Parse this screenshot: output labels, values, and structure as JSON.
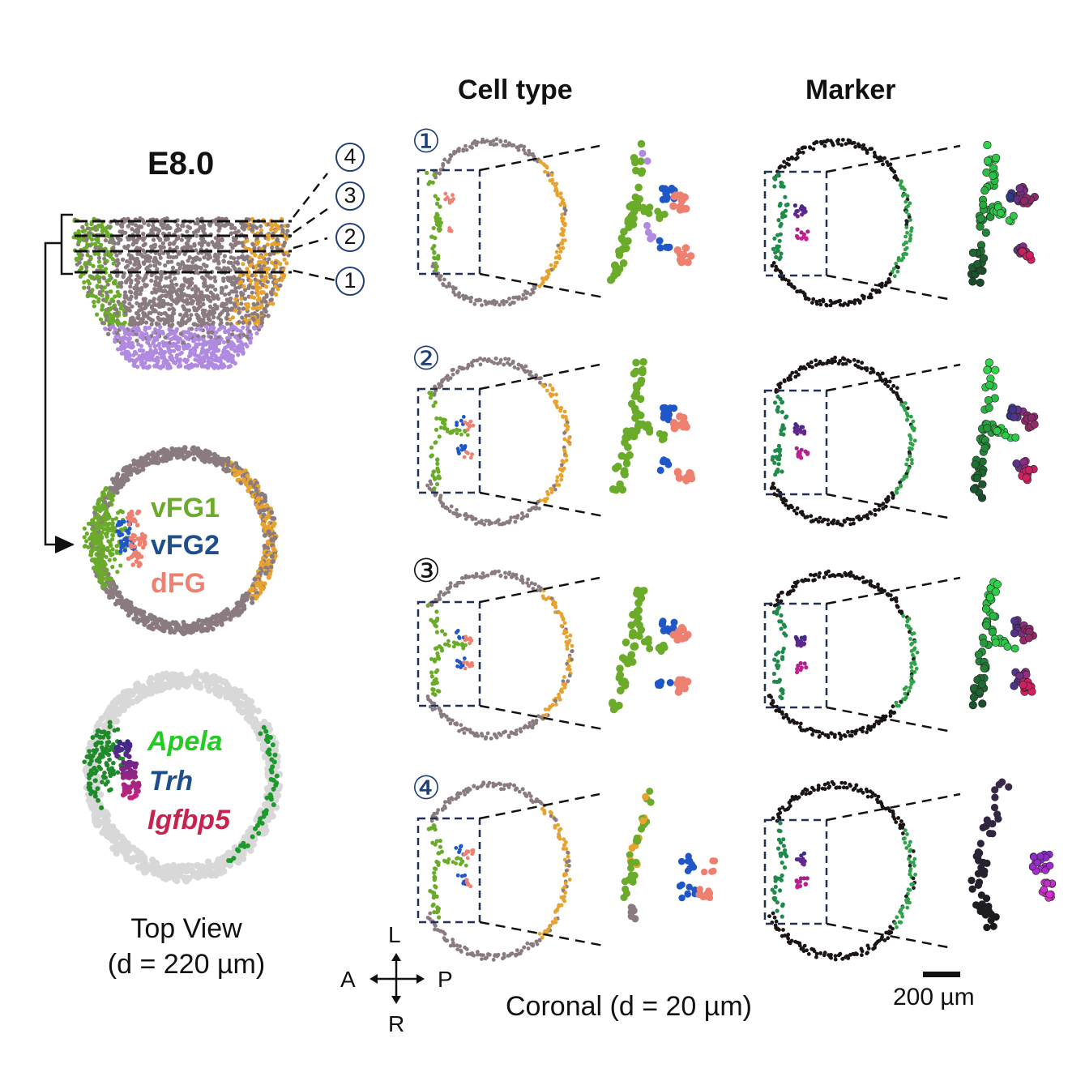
{
  "columns": {
    "cell_type": "Cell type",
    "marker": "Marker"
  },
  "stage": "E8.0",
  "section_numbers": [
    "①",
    "②",
    "③",
    "④"
  ],
  "slice_markers": [
    "4",
    "3",
    "2",
    "1"
  ],
  "cell_type_legend": [
    {
      "label": "vFG1",
      "color": "#6aab2a"
    },
    {
      "label": "vFG2",
      "color": "#1d4f8c"
    },
    {
      "label": "dFG",
      "color": "#ee8070"
    }
  ],
  "marker_legend": [
    {
      "label": "Apela",
      "color": "#22cc22"
    },
    {
      "label": "Trh",
      "color": "#1d4f8c"
    },
    {
      "label": "Igfbp5",
      "color": "#c8234f"
    }
  ],
  "top_view_caption": [
    "Top View",
    "(d = 220 µm)"
  ],
  "coronal_caption": "Coronal (d = 20 µm)",
  "scale_bar_label": "200 µm",
  "axes": {
    "up": "L",
    "down": "R",
    "left": "A",
    "right": "P"
  },
  "colors": {
    "grey": "#8a7b80",
    "orange": "#e8a22e",
    "green": "#6aab2a",
    "blue": "#1f57c8",
    "salmon": "#ee8070",
    "lilac": "#b08ae0",
    "frame": "#1f2f55"
  }
}
